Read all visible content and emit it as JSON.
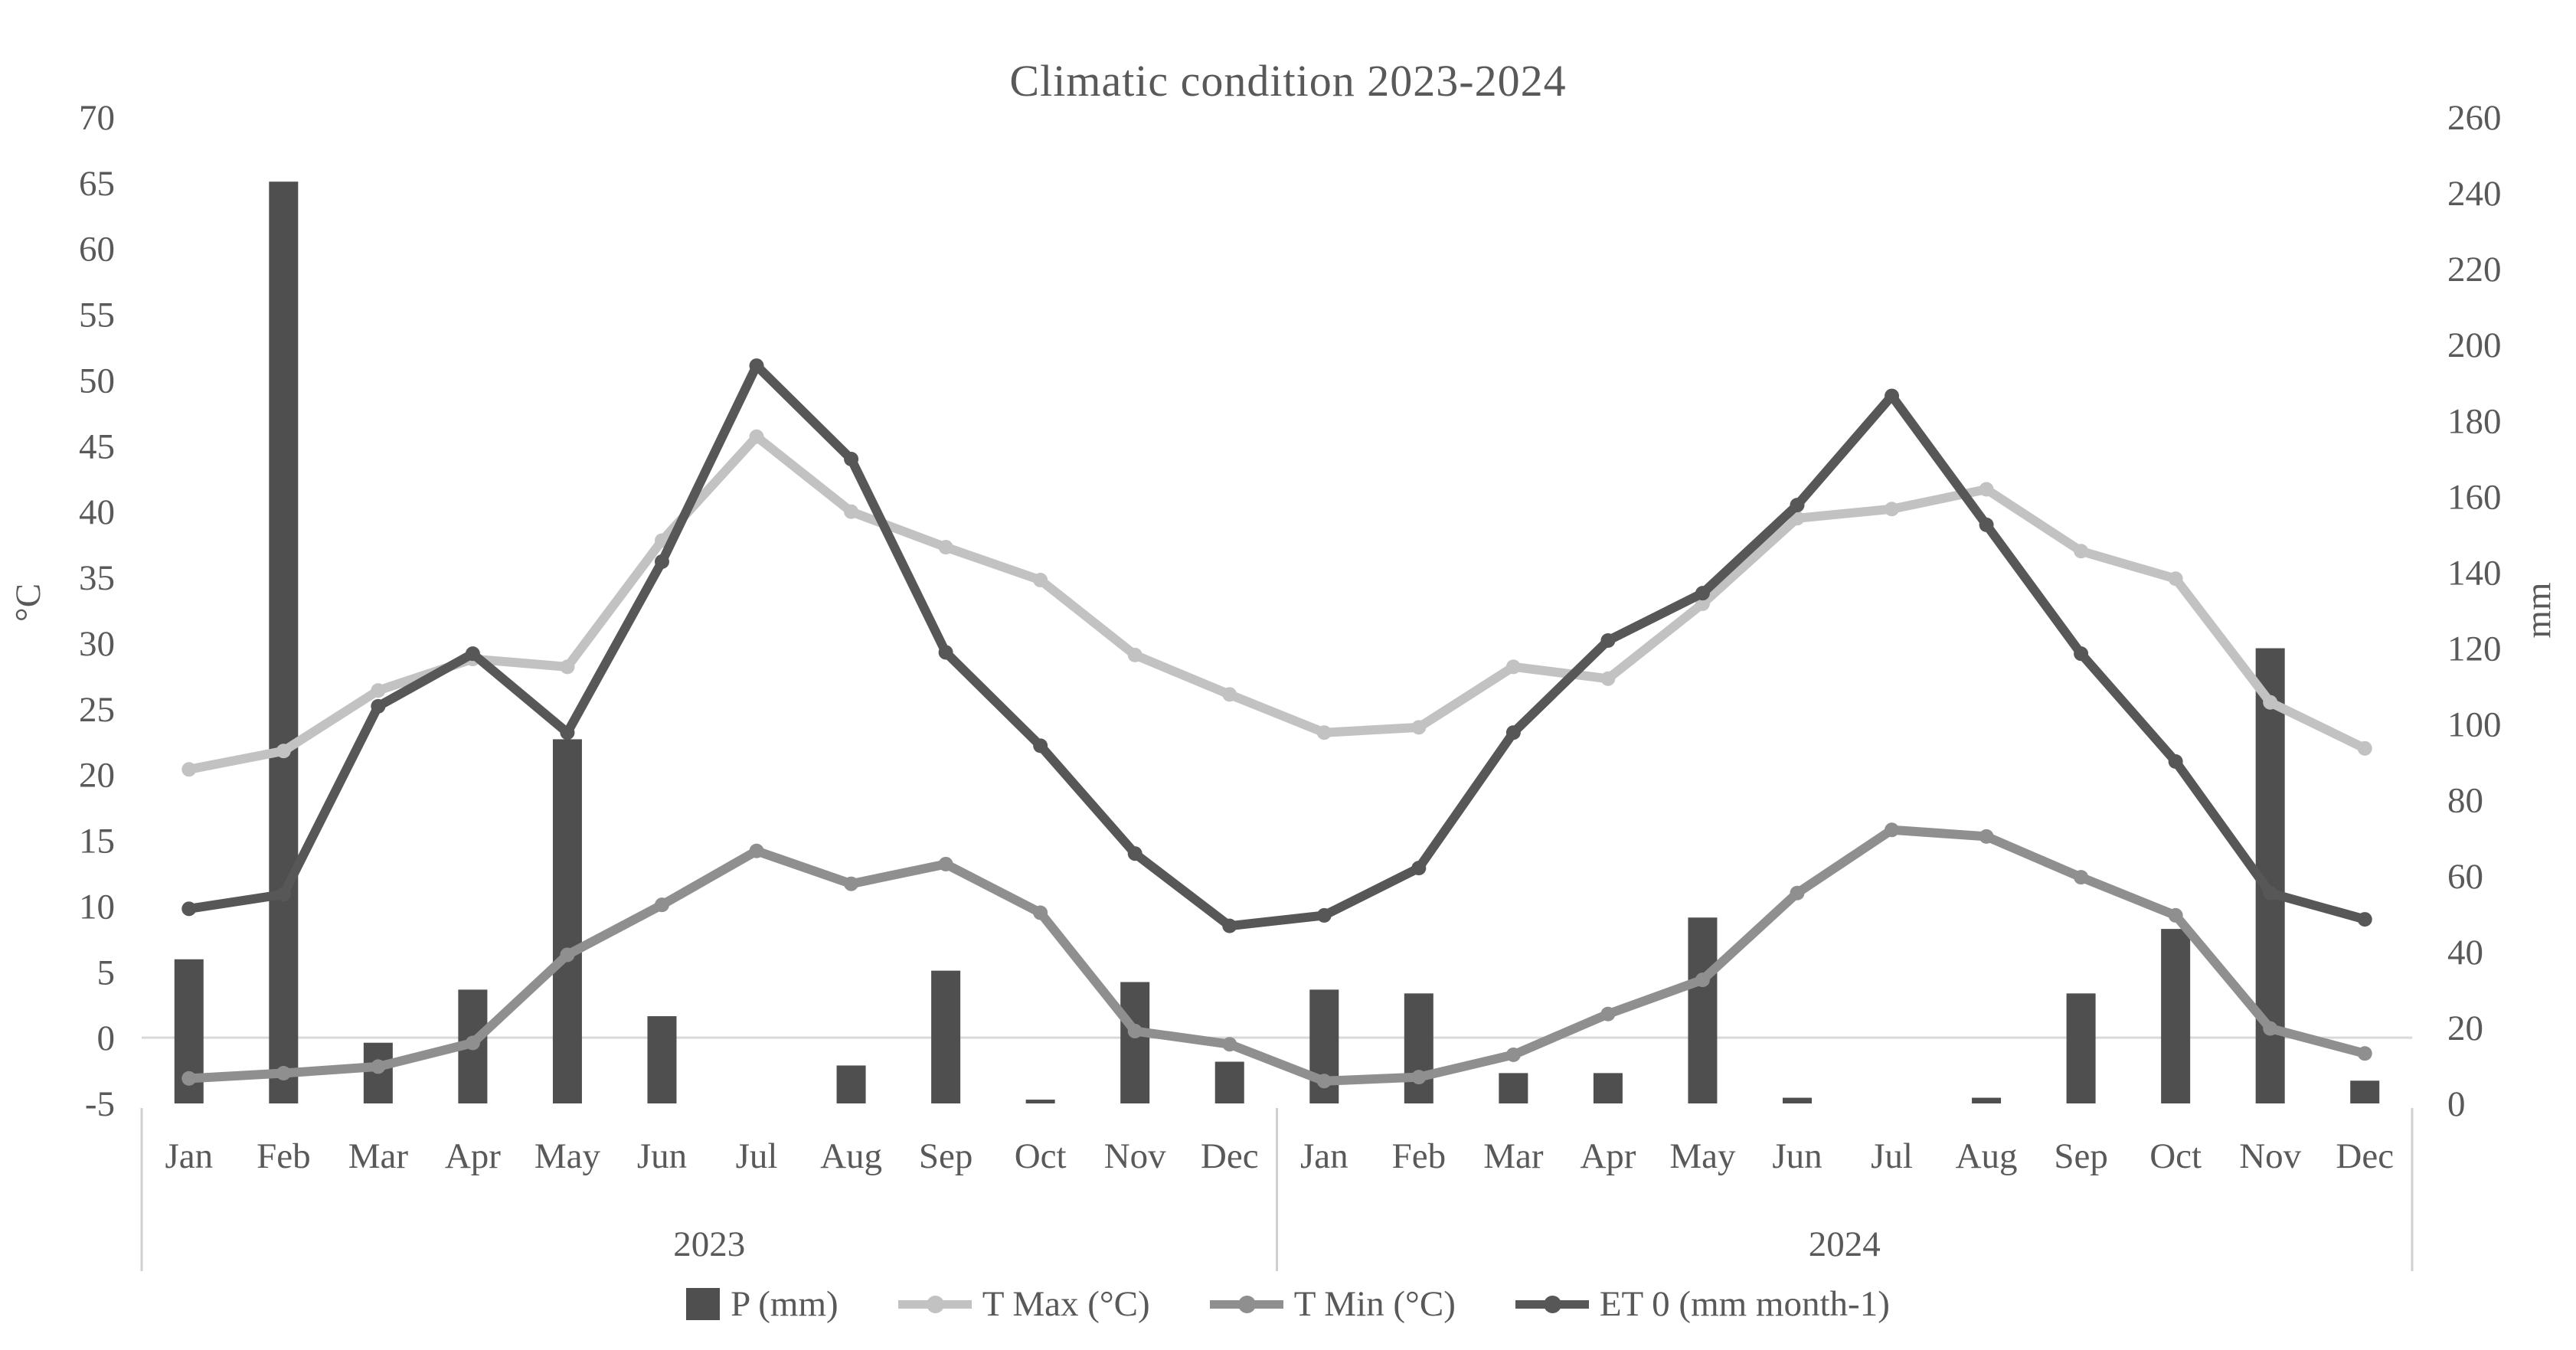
{
  "title": "Climatic condition 2023-2024",
  "colors": {
    "bar": "#4f4f4f",
    "t_max": "#c2c2c2",
    "t_min": "#8f8f8f",
    "et0": "#575757",
    "gridline": "#d9d9d9",
    "axis_text": "#595959",
    "separator": "#d0d0d0"
  },
  "chart_data": {
    "type": "bar+line combo",
    "title": "Climatic condition 2023-2024",
    "months": [
      "Jan",
      "Feb",
      "Mar",
      "Apr",
      "May",
      "Jun",
      "Jul",
      "Aug",
      "Sep",
      "Oct",
      "Nov",
      "Dec"
    ],
    "year_groups": [
      {
        "label": "2023"
      },
      {
        "label": "2024"
      }
    ],
    "left_axis": {
      "title": "°C",
      "min": -5,
      "max": 70,
      "step": 5
    },
    "right_axis": {
      "title": "mm",
      "min": 0,
      "max": 260,
      "step": 20
    },
    "grid": "single horizontal gridline at left-axis 0",
    "legend_position": "bottom",
    "series": [
      {
        "name": "P (mm)",
        "type": "bar",
        "axis": "right",
        "color": "#4f4f4f",
        "values": [
          38,
          243,
          16,
          30,
          96,
          23,
          0,
          10,
          35,
          1,
          32,
          11,
          30,
          29,
          8,
          8,
          49,
          1.5,
          0,
          1.5,
          29,
          46,
          120,
          6
        ]
      },
      {
        "name": "T Max (°C)",
        "type": "line",
        "axis": "left",
        "color": "#c2c2c2",
        "values": [
          20.4,
          21.8,
          26.4,
          28.8,
          28.2,
          37.8,
          45.7,
          40.0,
          37.3,
          34.8,
          29.1,
          26.1,
          23.2,
          23.6,
          28.2,
          27.3,
          33.0,
          39.5,
          40.2,
          41.7,
          37.0,
          34.9,
          25.5,
          22.0
        ]
      },
      {
        "name": "T Min (°C)",
        "type": "line",
        "axis": "left",
        "color": "#8f8f8f",
        "values": [
          -3.1,
          -2.7,
          -2.2,
          -0.4,
          6.3,
          10.1,
          14.2,
          11.7,
          13.2,
          9.5,
          0.5,
          -0.5,
          -3.3,
          -3.0,
          -1.3,
          1.8,
          4.4,
          11.0,
          15.8,
          15.3,
          12.2,
          9.3,
          0.7,
          -1.2
        ]
      },
      {
        "name": "ET 0 (mm month-1)",
        "type": "line",
        "axis": "left",
        "color": "#575757",
        "values": [
          9.8,
          10.9,
          25.2,
          29.2,
          23.2,
          36.2,
          51.1,
          44.0,
          29.3,
          22.2,
          14.0,
          8.5,
          9.3,
          12.9,
          23.2,
          30.2,
          33.8,
          40.5,
          48.8,
          39.0,
          29.2,
          21.0,
          11.0,
          9.0
        ]
      }
    ]
  }
}
